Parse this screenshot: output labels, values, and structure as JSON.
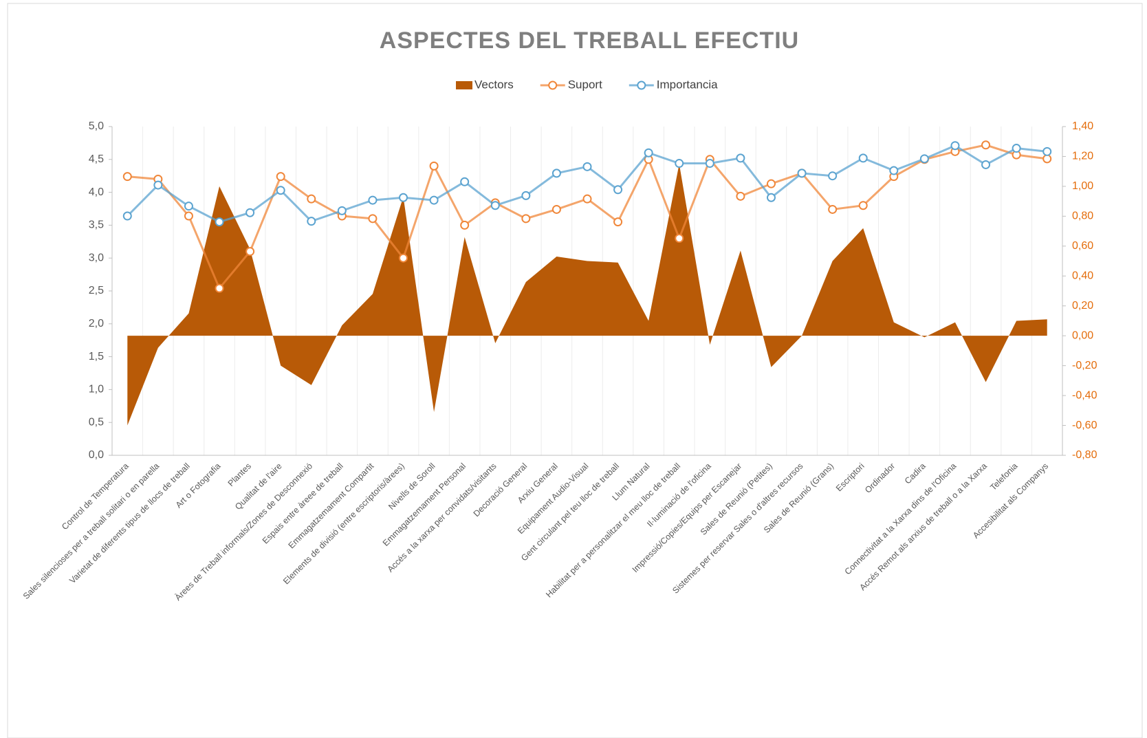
{
  "chart_data": {
    "type": "combo",
    "title": "ASPECTES DEL TREBALL EFECTIU",
    "categories": [
      "Control de Temperatura",
      "Sales silencioses per a treball solitari o en parella",
      "Varietat de diferents tipus de llocs de treball",
      "Art o Fotografia",
      "Plantes",
      "Qualitat de l'aire",
      "Àrees de Treball informals/Zones de Desconnexió",
      "Espais entre àreee de treball",
      "Emmagatzemament Compartit",
      "Elements de divisió (entre escriptoris/àrees)",
      "Nivells de Soroll",
      "Emmagatzemament Personal",
      "Accés a la xarxa per convidats/visitants",
      "Decoració General",
      "Arxiu General",
      "Equipament Audio-Visual",
      "Gent circulant pel teu lloc de treball",
      "Llum Natural",
      "Habilitat per a personalitzar el meu lloc de treball",
      "Il·luminació de l'oficina",
      "Impressió/Copies/Equips per Escanejar",
      "Sales de Reunió (Petites)",
      "Sistemes per reservar Sales o d'altres recursos",
      "Sales de Reunió (Grans)",
      "Escriptori",
      "Ordinador",
      "Cadira",
      "Connectivitat a la Xarxa dins de l'Oficina",
      "Accés Remot als arxius de treball o a la Xarxa",
      "Telefonia",
      "Accesibilitat als Companys"
    ],
    "series": [
      {
        "name": "Vectors",
        "type": "area",
        "axis": "y2",
        "color": "#b85a07",
        "values": [
          -0.6,
          -0.08,
          0.15,
          1.0,
          0.58,
          -0.2,
          -0.33,
          0.07,
          0.28,
          0.93,
          -0.51,
          0.66,
          -0.05,
          0.36,
          0.53,
          0.5,
          0.49,
          0.1,
          1.15,
          -0.06,
          0.57,
          -0.21,
          0.0,
          0.5,
          0.72,
          0.09,
          -0.01,
          0.09,
          -0.31,
          0.1,
          0.11
        ]
      },
      {
        "name": "Suport",
        "type": "line",
        "axis": "y",
        "color": "#f0873a",
        "values": [
          4.24,
          4.2,
          3.64,
          2.54,
          3.1,
          4.24,
          3.9,
          3.64,
          3.6,
          3.0,
          4.4,
          3.5,
          3.84,
          3.6,
          3.74,
          3.9,
          3.55,
          4.5,
          3.3,
          4.5,
          3.94,
          4.13,
          4.29,
          3.74,
          3.8,
          4.24,
          4.5,
          4.62,
          4.72,
          4.57,
          4.51
        ]
      },
      {
        "name": "Importancia",
        "type": "line",
        "axis": "y",
        "color": "#5ba3d0",
        "values": [
          3.64,
          4.11,
          3.79,
          3.55,
          3.69,
          4.03,
          3.56,
          3.72,
          3.88,
          3.92,
          3.88,
          4.16,
          3.8,
          3.95,
          4.29,
          4.39,
          4.04,
          4.6,
          4.44,
          4.44,
          4.52,
          3.92,
          4.29,
          4.25,
          4.52,
          4.33,
          4.51,
          4.71,
          4.42,
          4.67,
          4.62
        ]
      }
    ],
    "ylim": [
      0,
      5
    ],
    "yticks": [
      {
        "value": 0,
        "label": "0,0"
      },
      {
        "value": 0.5,
        "label": "0,5"
      },
      {
        "value": 1,
        "label": "1,0"
      },
      {
        "value": 1.5,
        "label": "1,5"
      },
      {
        "value": 2,
        "label": "2,0"
      },
      {
        "value": 2.5,
        "label": "2,5"
      },
      {
        "value": 3,
        "label": "3,0"
      },
      {
        "value": 3.5,
        "label": "3,5"
      },
      {
        "value": 4,
        "label": "4,0"
      },
      {
        "value": 4.5,
        "label": "4,5"
      },
      {
        "value": 5,
        "label": "5,0"
      }
    ],
    "y2lim": [
      -0.8,
      1.4
    ],
    "y2ticks": [
      {
        "value": -0.8,
        "label": "-0,80"
      },
      {
        "value": -0.6,
        "label": "-0,60"
      },
      {
        "value": -0.4,
        "label": "-0,40"
      },
      {
        "value": -0.2,
        "label": "-0,20"
      },
      {
        "value": 0,
        "label": "0,00"
      },
      {
        "value": 0.2,
        "label": "0,20"
      },
      {
        "value": 0.4,
        "label": "0,40"
      },
      {
        "value": 0.6,
        "label": "0,60"
      },
      {
        "value": 0.8,
        "label": "0,80"
      },
      {
        "value": 1,
        "label": "1,00"
      },
      {
        "value": 1.2,
        "label": "1,20"
      },
      {
        "value": 1.4,
        "label": "1,40"
      }
    ],
    "legend": "top"
  }
}
